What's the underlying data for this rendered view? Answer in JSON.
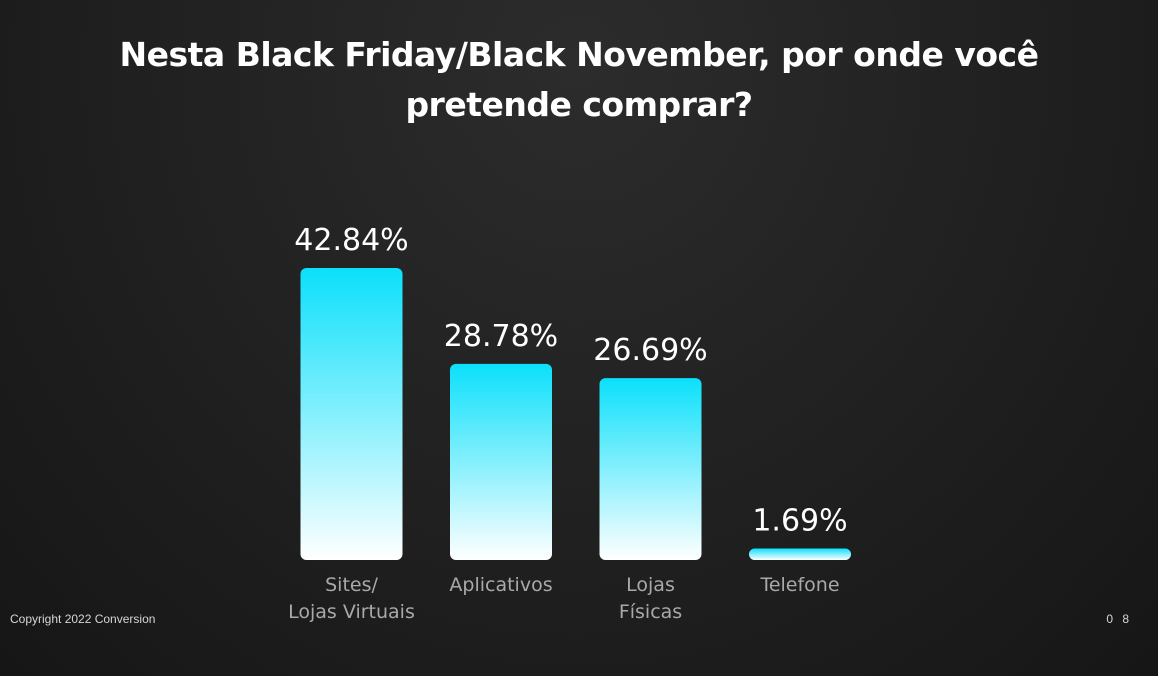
{
  "title_lines": [
    "Nesta Black Friday/Black November, por onde você",
    "pretende comprar?"
  ],
  "footer": {
    "copyright": "Copyright 2022 Conversion",
    "page_number": "0 8"
  },
  "colors": {
    "bar_top": "#0be0fb",
    "bar_bottom": "#ffffff",
    "value_label": "#ffffff",
    "category_label": "#a9a9a9",
    "background": "#222222"
  },
  "chart_data": {
    "type": "bar",
    "categories": [
      [
        "Sites/",
        "Lojas Virtuais"
      ],
      [
        "Aplicativos"
      ],
      [
        "Lojas",
        "Físicas"
      ],
      [
        "Telefone"
      ]
    ],
    "values": [
      42.84,
      28.78,
      26.69,
      1.69
    ],
    "value_labels": [
      "42.84%",
      "28.78%",
      "26.69%",
      "1.69%"
    ],
    "ylim": [
      0,
      42.84
    ],
    "grid": false,
    "legend": "none"
  }
}
